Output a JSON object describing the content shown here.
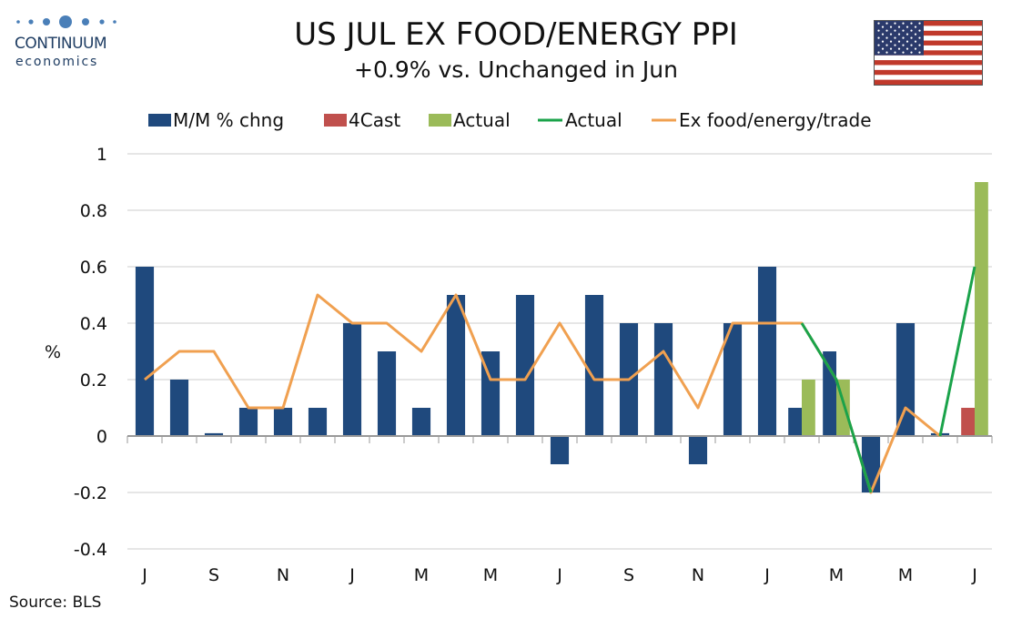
{
  "header": {
    "title": "US JUL EX FOOD/ENERGY PPI",
    "subtitle": "+0.9% vs. Unchanged in Jun",
    "logo_name": "CONTINUUM",
    "logo_sub": "economics",
    "flag_icon": "us-flag-icon"
  },
  "footer": {
    "source": "Source: BLS"
  },
  "colors": {
    "mm_bar": "#1f497d",
    "forecast_bar": "#c0504d",
    "actual_bar": "#9bbb59",
    "actual_line": "#1aa34a",
    "ex_trade_line": "#f0a050",
    "grid": "#cccccc",
    "axis": "#999999"
  },
  "chart_data": {
    "type": "bar",
    "ylabel": "%",
    "ylim": [
      -0.4,
      1
    ],
    "yticks": [
      1,
      0.8,
      0.6,
      0.4,
      0.2,
      0,
      -0.2,
      -0.4
    ],
    "grid": true,
    "legend_position": "top",
    "x_tick_labels": [
      "J",
      "",
      "S",
      "",
      "N",
      "",
      "J",
      "",
      "M",
      "",
      "M",
      "",
      "J",
      "",
      "S",
      "",
      "N",
      "",
      "J",
      "",
      "M",
      "",
      "M",
      "",
      "J"
    ],
    "legend": [
      {
        "name": "M/M % chng",
        "kind": "bar",
        "color": "#1f497d"
      },
      {
        "name": "4Cast",
        "kind": "bar",
        "color": "#c0504d"
      },
      {
        "name": "Actual",
        "kind": "bar",
        "color": "#9bbb59"
      },
      {
        "name": "Actual",
        "kind": "line",
        "color": "#1aa34a"
      },
      {
        "name": "Ex food/energy/trade",
        "kind": "line",
        "color": "#f0a050"
      }
    ],
    "series": [
      {
        "name": "M/M % chng",
        "kind": "bar",
        "values": [
          0.6,
          0.2,
          0.01,
          0.1,
          0.1,
          0.1,
          0.4,
          0.3,
          0.1,
          0.5,
          0.3,
          0.5,
          -0.1,
          0.5,
          0.4,
          0.4,
          -0.1,
          0.4,
          0.6,
          0.1,
          0.3,
          -0.2,
          0.4,
          0.01,
          null
        ]
      },
      {
        "name": "4Cast",
        "kind": "bar",
        "values": [
          null,
          null,
          null,
          null,
          null,
          null,
          null,
          null,
          null,
          null,
          null,
          null,
          null,
          null,
          null,
          null,
          null,
          null,
          null,
          null,
          null,
          null,
          null,
          null,
          0.1
        ]
      },
      {
        "name": "Actual",
        "kind": "bar",
        "values": [
          null,
          null,
          null,
          null,
          null,
          null,
          null,
          null,
          null,
          null,
          null,
          null,
          null,
          null,
          null,
          null,
          null,
          null,
          null,
          0.2,
          0.2,
          null,
          null,
          null,
          0.9
        ]
      },
      {
        "name": "Actual",
        "kind": "line",
        "values": [
          null,
          null,
          null,
          null,
          null,
          null,
          null,
          null,
          null,
          null,
          null,
          null,
          null,
          null,
          null,
          null,
          null,
          null,
          null,
          0.4,
          0.2,
          -0.2,
          null,
          0.0,
          0.6
        ]
      },
      {
        "name": "Ex food/energy/trade",
        "kind": "line",
        "values": [
          0.2,
          0.3,
          0.3,
          0.1,
          0.1,
          0.5,
          0.4,
          0.4,
          0.3,
          0.5,
          0.2,
          0.2,
          0.4,
          0.2,
          0.2,
          0.3,
          0.1,
          0.4,
          0.4,
          0.4,
          0.2,
          -0.2,
          0.1,
          0.0,
          null
        ]
      }
    ]
  }
}
